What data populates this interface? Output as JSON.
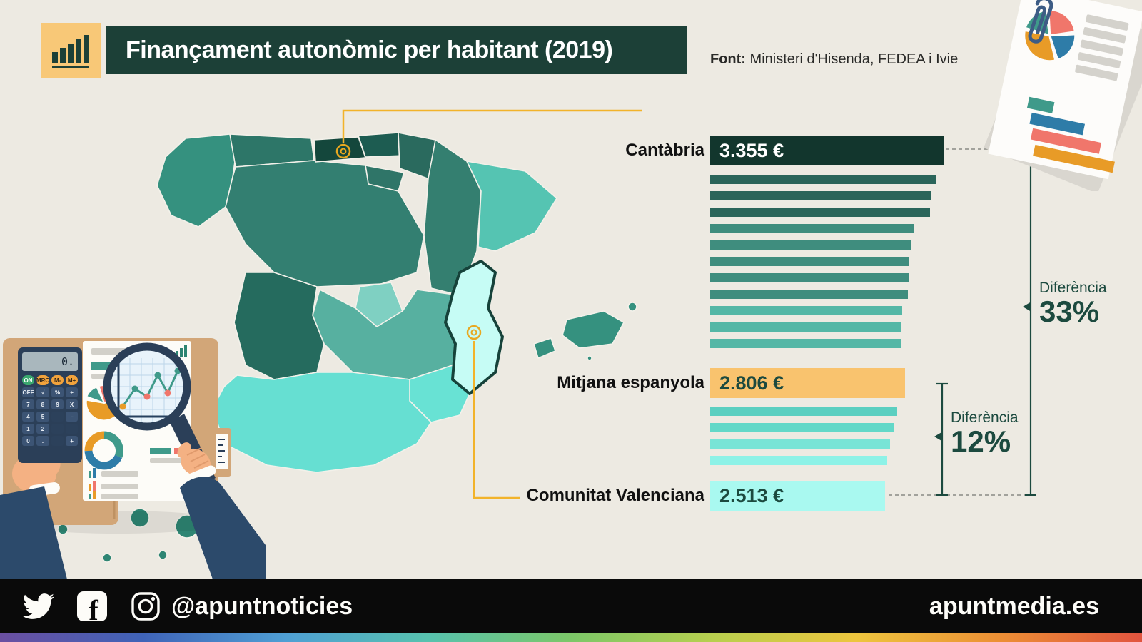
{
  "header": {
    "title": "Finançament autonòmic per habitant (2019)",
    "source": {
      "label": "Font:",
      "text": " Ministeri d'Hisenda, FEDEA i Ivie"
    },
    "colors": {
      "title_bg": "#1c4037",
      "title_text": "#ffffff",
      "icon_bg": "#f8c877",
      "icon_glyph": "#1c4037"
    }
  },
  "chart_data": {
    "type": "bar",
    "orientation": "horizontal",
    "unit": "euros per habitant",
    "xlim": [
      0,
      3355
    ],
    "labeled_bars": [
      {
        "id": "cantabria",
        "label": "Cantàbria",
        "value": 3355,
        "display": "3.355 €",
        "color": "#12362d",
        "text_color": "#ffffff"
      },
      {
        "id": "mitjana",
        "label": "Mitjana espanyola",
        "value": 2806,
        "display": "2.806 €",
        "color": "#f9c36e",
        "text_color": "#1c4a3f"
      },
      {
        "id": "valenciana",
        "label": "Comunitat Valenciana",
        "value": 2513,
        "display": "2.513 €",
        "color": "#a9f9f0",
        "text_color": "#1c4a3f"
      }
    ],
    "unlabeled_bars_above_average": [
      {
        "value": 3250,
        "color": "#2b655a"
      },
      {
        "value": 3185,
        "color": "#2b655a"
      },
      {
        "value": 3165,
        "color": "#2b655a"
      },
      {
        "value": 2930,
        "color": "#3f8d7e"
      },
      {
        "value": 2880,
        "color": "#3f8d7e"
      },
      {
        "value": 2862,
        "color": "#3f8d7e"
      },
      {
        "value": 2850,
        "color": "#3f8d7e"
      },
      {
        "value": 2845,
        "color": "#3f8d7e"
      },
      {
        "value": 2755,
        "color": "#54b7a6"
      },
      {
        "value": 2750,
        "color": "#54b7a6"
      },
      {
        "value": 2745,
        "color": "#54b7a6"
      }
    ],
    "unlabeled_bars_below_average": [
      {
        "value": 2690,
        "color": "#5bcfc0"
      },
      {
        "value": 2645,
        "color": "#63d8c8"
      },
      {
        "value": 2590,
        "color": "#78e4d6"
      },
      {
        "value": 2545,
        "color": "#8df2e7"
      }
    ],
    "annotations": [
      {
        "id": "diff33",
        "label": "Diferència",
        "value": "33%",
        "from": "Cantàbria",
        "to": "Comunitat Valenciana"
      },
      {
        "id": "diff12",
        "label": "Diferència",
        "value": "12%",
        "from": "Mitjana espanyola",
        "to": "Comunitat Valenciana"
      }
    ]
  },
  "map": {
    "marker_color": "#e8a820",
    "connector_color": "#f2b32a",
    "highlight_outline": "#16423a",
    "regions": [
      {
        "id": "galicia",
        "color": "#35917f"
      },
      {
        "id": "asturies",
        "color": "#2d7668"
      },
      {
        "id": "cantabria",
        "color": "#14473c",
        "highlighted": true
      },
      {
        "id": "pais-basc",
        "color": "#1d5c51"
      },
      {
        "id": "navarra",
        "color": "#2a6a5e"
      },
      {
        "id": "rioja",
        "color": "#2f7568"
      },
      {
        "id": "arago",
        "color": "#347f70"
      },
      {
        "id": "catalunya",
        "color": "#55c4b2"
      },
      {
        "id": "castella-lleo",
        "color": "#337f71"
      },
      {
        "id": "madrid",
        "color": "#7fd0c2"
      },
      {
        "id": "castella-manxa",
        "color": "#57b0a0"
      },
      {
        "id": "valenciana",
        "color": "#c6fcf5",
        "highlighted": true
      },
      {
        "id": "murcia",
        "color": "#68e2d4"
      },
      {
        "id": "extremadura",
        "color": "#256b5e"
      },
      {
        "id": "andalusia",
        "color": "#66dfd2"
      },
      {
        "id": "balears",
        "color": "#35917f"
      },
      {
        "id": "canaries",
        "color": "#2e8573"
      }
    ]
  },
  "illustration_calculator": {
    "display": "0.",
    "keys_memory": [
      "ON",
      "MRC",
      "M-",
      "M+"
    ],
    "keys": [
      [
        "OFF",
        "√",
        "%",
        "÷"
      ],
      [
        "7",
        "8",
        "9",
        "X"
      ],
      [
        "4",
        "5",
        "",
        "−"
      ],
      [
        "1",
        "2",
        "",
        ""
      ],
      [
        "0",
        ".",
        "",
        "+"
      ]
    ]
  },
  "footer": {
    "handle": "@apuntnoticies",
    "website": "apuntmedia.es",
    "icons": [
      "twitter-icon",
      "facebook-icon",
      "instagram-icon"
    ],
    "bg": "#0a0a0a",
    "rainbow": [
      "#6b4fa1",
      "#3f63b8",
      "#4f9fd4",
      "#57c2ae",
      "#7cc768",
      "#b8cf4e",
      "#edc53e",
      "#ec8f35",
      "#e1543f"
    ]
  }
}
